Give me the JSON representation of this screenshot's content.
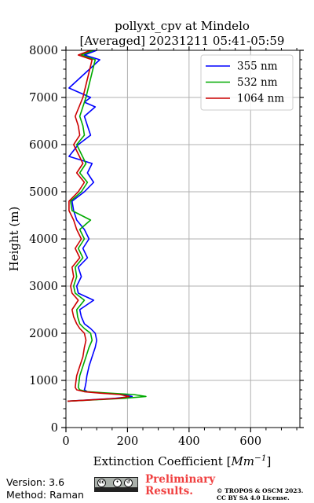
{
  "chart_data": {
    "type": "line",
    "title_line1": "pollyxt_cpv at Mindelo",
    "title_line2": "[Averaged] 20231211 05:41-05:59",
    "xlabel": "Extinction Coefficient",
    "xlabel_unit_base": "Mm",
    "xlabel_unit_exp": "−1",
    "ylabel": "Height (m)",
    "xlim": [
      0,
      760
    ],
    "ylim": [
      0,
      8000
    ],
    "x_ticks": [
      0,
      200,
      400,
      600
    ],
    "y_ticks": [
      0,
      1000,
      2000,
      3000,
      4000,
      5000,
      6000,
      7000,
      8000
    ],
    "x_tick_labels": [
      "0",
      "200",
      "400",
      "600"
    ],
    "y_tick_labels": [
      "0",
      "1000",
      "2000",
      "3000",
      "4000",
      "5000",
      "6000",
      "7000",
      "8000"
    ],
    "grid": true,
    "legend_position": "top-right",
    "series": [
      {
        "name": "355 nm",
        "color": "#0000ff",
        "height": [
          560,
          580,
          620,
          660,
          700,
          730,
          760,
          800,
          850,
          950,
          1100,
          1300,
          1500,
          1700,
          1850,
          2000,
          2100,
          2200,
          2350,
          2500,
          2700,
          2850,
          3000,
          3200,
          3400,
          3600,
          3800,
          4000,
          4200,
          4400,
          4600,
          4800,
          5000,
          5200,
          5400,
          5600,
          5750,
          6000,
          6200,
          6400,
          6600,
          6800,
          6900,
          7000,
          7200,
          7800,
          7900,
          8000
        ],
        "extinction": [
          5,
          60,
          160,
          215,
          185,
          120,
          70,
          60,
          62,
          65,
          68,
          75,
          85,
          95,
          100,
          95,
          80,
          60,
          50,
          45,
          90,
          40,
          35,
          50,
          40,
          70,
          55,
          75,
          60,
          35,
          25,
          20,
          60,
          90,
          70,
          85,
          10,
          40,
          80,
          70,
          60,
          95,
          60,
          80,
          10,
          110,
          60,
          100
        ]
      },
      {
        "name": "532 nm",
        "color": "#00aa00",
        "height": [
          560,
          580,
          620,
          660,
          700,
          730,
          760,
          800,
          850,
          950,
          1100,
          1300,
          1500,
          1700,
          1850,
          2000,
          2100,
          2200,
          2350,
          2500,
          2700,
          2850,
          3000,
          3200,
          3400,
          3600,
          3800,
          4000,
          4200,
          4400,
          4600,
          4800,
          5000,
          5200,
          5400,
          5600,
          6000,
          6200,
          6400,
          6600,
          7000,
          7800,
          7900,
          8000
        ],
        "extinction": [
          5,
          70,
          190,
          260,
          220,
          140,
          70,
          45,
          40,
          42,
          45,
          55,
          65,
          75,
          85,
          80,
          60,
          45,
          38,
          35,
          60,
          30,
          25,
          35,
          30,
          55,
          40,
          60,
          45,
          80,
          20,
          15,
          50,
          70,
          45,
          65,
          35,
          60,
          55,
          45,
          65,
          95,
          50,
          90
        ]
      },
      {
        "name": "1064 nm",
        "color": "#cc0000",
        "height": [
          560,
          580,
          620,
          660,
          700,
          730,
          760,
          800,
          850,
          950,
          1100,
          1300,
          1500,
          1700,
          1850,
          2000,
          2100,
          2200,
          2350,
          2500,
          2700,
          2850,
          3000,
          3200,
          3400,
          3600,
          3800,
          4000,
          4200,
          4400,
          4600,
          4800,
          5000,
          5200,
          5400,
          5600,
          6000,
          6200,
          6400,
          6600,
          7000,
          7800,
          7900,
          8000
        ],
        "extinction": [
          5,
          65,
          170,
          205,
          175,
          110,
          60,
          35,
          30,
          32,
          35,
          45,
          55,
          60,
          65,
          60,
          45,
          35,
          25,
          20,
          40,
          20,
          15,
          25,
          20,
          45,
          30,
          50,
          35,
          25,
          10,
          10,
          40,
          60,
          35,
          55,
          25,
          45,
          40,
          30,
          55,
          85,
          40,
          80
        ]
      }
    ]
  },
  "footer": {
    "version": "Version: 3.6",
    "method": "Method: Raman",
    "preliminary_line1": "Preliminary",
    "preliminary_line2": "Results.",
    "copyright_line1": "© TROPOS & OSCM 2023.",
    "copyright_line2": "CC BY SA 4.0 License.",
    "preliminary_color": "#f04040"
  }
}
